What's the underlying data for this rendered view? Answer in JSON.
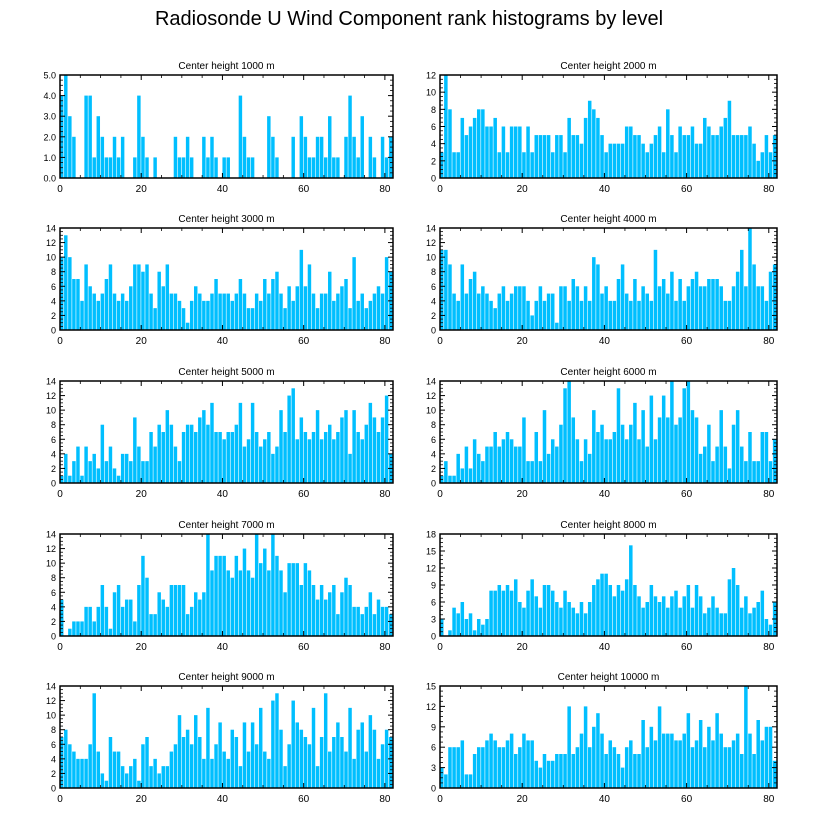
{
  "title": "Radiosonde U Wind Component rank histograms by level",
  "colors": {
    "bar": "#00bfff",
    "axis": "#000000"
  },
  "chart_data": [
    {
      "type": "bar",
      "title": "Center height 1000 m",
      "xlim": [
        0,
        82
      ],
      "xticks": [
        0,
        20,
        40,
        60,
        80
      ],
      "ylim": [
        0,
        5
      ],
      "yticks": [
        0,
        1,
        2,
        3,
        4,
        5
      ],
      "ytick_labels": [
        "0.0",
        "1.0",
        "2.0",
        "3.0",
        "4.0",
        "5.0"
      ],
      "values": [
        4,
        5,
        3,
        2,
        0,
        0,
        4,
        4,
        1,
        3,
        2,
        1,
        1,
        2,
        1,
        2,
        0,
        0,
        1,
        4,
        2,
        1,
        0,
        1,
        0,
        0,
        0,
        0,
        2,
        1,
        1,
        2,
        1,
        0,
        0,
        2,
        1,
        2,
        1,
        0,
        1,
        1,
        0,
        0,
        4,
        2,
        1,
        1,
        0,
        0,
        0,
        3,
        2,
        1,
        0,
        0,
        0,
        2,
        0,
        3,
        2,
        1,
        1,
        2,
        2,
        1,
        3,
        1,
        1,
        0,
        2,
        4,
        2,
        1,
        3,
        0,
        2,
        1,
        0,
        2,
        1,
        2
      ]
    },
    {
      "type": "bar",
      "title": "Center height 2000 m",
      "xlim": [
        0,
        82
      ],
      "xticks": [
        0,
        20,
        40,
        60,
        80
      ],
      "ylim": [
        0,
        12
      ],
      "yticks": [
        0,
        2,
        4,
        6,
        8,
        10,
        12
      ],
      "ytick_labels": [
        "0",
        "2",
        "4",
        "6",
        "8",
        "10",
        "12"
      ],
      "values": [
        3,
        12,
        8,
        3,
        3,
        7,
        5,
        6,
        7,
        8,
        8,
        6,
        6,
        7,
        3,
        6,
        3,
        6,
        6,
        6,
        3,
        6,
        3,
        5,
        5,
        5,
        5,
        3,
        5,
        5,
        3,
        7,
        5,
        5,
        4,
        7,
        9,
        8,
        7,
        5,
        3,
        4,
        4,
        4,
        4,
        6,
        6,
        5,
        5,
        4,
        3,
        4,
        5,
        6,
        3,
        8,
        5,
        3,
        6,
        5,
        5,
        6,
        4,
        4,
        7,
        6,
        5,
        5,
        6,
        7,
        9,
        5,
        5,
        5,
        5,
        6,
        4,
        2,
        3,
        5,
        3,
        5
      ]
    },
    {
      "type": "bar",
      "title": "Center height 3000 m",
      "xlim": [
        0,
        82
      ],
      "xticks": [
        0,
        20,
        40,
        60,
        80
      ],
      "ylim": [
        0,
        14
      ],
      "yticks": [
        0,
        2,
        4,
        6,
        8,
        10,
        12,
        14
      ],
      "ytick_labels": [
        "0",
        "2",
        "4",
        "6",
        "8",
        "10",
        "12",
        "14"
      ],
      "values": [
        10,
        13,
        10,
        7,
        7,
        4,
        9,
        6,
        5,
        4,
        5,
        7,
        9,
        5,
        4,
        5,
        4,
        6,
        9,
        9,
        8,
        9,
        5,
        3,
        8,
        6,
        9,
        5,
        5,
        4,
        3,
        1,
        4,
        6,
        5,
        4,
        4,
        5,
        7,
        5,
        5,
        5,
        4,
        5,
        7,
        5,
        3,
        3,
        5,
        4,
        7,
        5,
        7,
        8,
        5,
        3,
        6,
        4,
        6,
        11,
        6,
        9,
        5,
        3,
        5,
        5,
        8,
        4,
        5,
        6,
        7,
        3,
        10,
        4,
        5,
        3,
        4,
        5,
        6,
        5,
        10,
        8
      ]
    },
    {
      "type": "bar",
      "title": "Center height 4000 m",
      "xlim": [
        0,
        82
      ],
      "xticks": [
        0,
        20,
        40,
        60,
        80
      ],
      "ylim": [
        0,
        14
      ],
      "yticks": [
        0,
        2,
        4,
        6,
        8,
        10,
        12,
        14
      ],
      "ytick_labels": [
        "0",
        "2",
        "4",
        "6",
        "8",
        "10",
        "12",
        "14"
      ],
      "values": [
        11,
        11,
        9,
        5,
        4,
        9,
        5,
        7,
        8,
        5,
        6,
        5,
        4,
        3,
        5,
        6,
        4,
        5,
        6,
        6,
        6,
        4,
        2,
        4,
        6,
        4,
        5,
        5,
        1,
        6,
        6,
        4,
        7,
        6,
        4,
        6,
        4,
        10,
        9,
        5,
        6,
        4,
        4,
        7,
        9,
        5,
        4,
        7,
        4,
        6,
        5,
        4,
        11,
        6,
        7,
        5,
        8,
        4,
        7,
        4,
        6,
        7,
        8,
        6,
        6,
        7,
        7,
        7,
        6,
        4,
        4,
        6,
        8,
        11,
        6,
        14,
        9,
        6,
        6,
        4,
        8,
        9
      ]
    },
    {
      "type": "bar",
      "title": "Center height 5000 m",
      "xlim": [
        0,
        82
      ],
      "xticks": [
        0,
        20,
        40,
        60,
        80
      ],
      "ylim": [
        0,
        14
      ],
      "yticks": [
        0,
        2,
        4,
        6,
        8,
        10,
        12,
        14
      ],
      "ytick_labels": [
        "0",
        "2",
        "4",
        "6",
        "8",
        "10",
        "12",
        "14"
      ],
      "values": [
        1,
        4,
        1,
        3,
        5,
        1,
        5,
        3,
        4,
        2,
        8,
        3,
        5,
        2,
        1,
        4,
        4,
        3,
        9,
        5,
        3,
        3,
        7,
        5,
        8,
        7,
        10,
        8,
        5,
        3,
        7,
        8,
        8,
        7,
        9,
        10,
        8,
        11,
        7,
        7,
        6,
        7,
        7,
        8,
        11,
        5,
        6,
        11,
        7,
        5,
        6,
        7,
        4,
        5,
        10,
        7,
        12,
        13,
        6,
        9,
        7,
        6,
        7,
        10,
        6,
        7,
        8,
        6,
        7,
        9,
        10,
        4,
        10,
        7,
        6,
        8,
        11,
        9,
        7,
        9,
        12,
        4
      ]
    },
    {
      "type": "bar",
      "title": "Center height 6000 m",
      "xlim": [
        0,
        82
      ],
      "xticks": [
        0,
        20,
        40,
        60,
        80
      ],
      "ylim": [
        0,
        14
      ],
      "yticks": [
        0,
        2,
        4,
        6,
        8,
        10,
        12,
        14
      ],
      "ytick_labels": [
        "0",
        "2",
        "4",
        "6",
        "8",
        "10",
        "12",
        "14"
      ],
      "values": [
        1,
        3,
        1,
        1,
        4,
        2,
        5,
        2,
        6,
        4,
        3,
        5,
        5,
        7,
        5,
        6,
        7,
        6,
        5,
        5,
        9,
        3,
        3,
        7,
        3,
        10,
        4,
        6,
        5,
        8,
        13,
        14,
        9,
        6,
        3,
        6,
        4,
        10,
        7,
        8,
        6,
        6,
        7,
        13,
        8,
        6,
        8,
        11,
        6,
        10,
        5,
        12,
        6,
        9,
        12,
        9,
        14,
        8,
        9,
        13,
        14,
        10,
        9,
        4,
        5,
        8,
        3,
        5,
        10,
        5,
        2,
        8,
        10,
        5,
        3,
        7,
        3,
        3,
        7,
        7,
        3,
        6
      ]
    },
    {
      "type": "bar",
      "title": "Center height 7000 m",
      "xlim": [
        0,
        82
      ],
      "xticks": [
        0,
        20,
        40,
        60,
        80
      ],
      "ylim": [
        0,
        14
      ],
      "yticks": [
        0,
        2,
        4,
        6,
        8,
        10,
        12,
        14
      ],
      "ytick_labels": [
        "0",
        "2",
        "4",
        "6",
        "8",
        "10",
        "12",
        "14"
      ],
      "values": [
        5,
        0,
        1,
        2,
        2,
        2,
        4,
        4,
        2,
        4,
        7,
        4,
        1,
        6,
        7,
        4,
        5,
        5,
        2,
        7,
        11,
        8,
        3,
        3,
        6,
        5,
        4,
        7,
        7,
        7,
        7,
        3,
        4,
        6,
        5,
        6,
        14,
        9,
        11,
        11,
        11,
        9,
        8,
        11,
        9,
        12,
        9,
        8,
        14,
        10,
        12,
        9,
        14,
        11,
        9,
        6,
        10,
        10,
        10,
        7,
        10,
        9,
        7,
        5,
        7,
        5,
        6,
        7,
        3,
        6,
        8,
        7,
        4,
        4,
        3,
        4,
        6,
        3,
        5,
        4,
        4,
        3
      ]
    },
    {
      "type": "bar",
      "title": "Center height 8000 m",
      "xlim": [
        0,
        82
      ],
      "xticks": [
        0,
        20,
        40,
        60,
        80
      ],
      "ylim": [
        0,
        18
      ],
      "yticks": [
        0,
        3,
        6,
        9,
        12,
        15,
        18
      ],
      "ytick_labels": [
        "0",
        "3",
        "6",
        "9",
        "12",
        "15",
        "18"
      ],
      "values": [
        3,
        0,
        1,
        5,
        4,
        6,
        3,
        4,
        1,
        3,
        2,
        3,
        8,
        8,
        9,
        8,
        9,
        8,
        10,
        6,
        5,
        8,
        10,
        7,
        5,
        9,
        9,
        8,
        6,
        5,
        8,
        6,
        5,
        4,
        6,
        4,
        6,
        9,
        10,
        11,
        11,
        9,
        7,
        9,
        8,
        10,
        16,
        9,
        7,
        5,
        6,
        9,
        7,
        6,
        7,
        5,
        7,
        8,
        5,
        7,
        9,
        5,
        9,
        7,
        4,
        5,
        7,
        5,
        4,
        4,
        10,
        12,
        9,
        5,
        7,
        4,
        5,
        6,
        8,
        3,
        2,
        6
      ]
    },
    {
      "type": "bar",
      "title": "Center height 9000 m",
      "xlim": [
        0,
        82
      ],
      "xticks": [
        0,
        20,
        40,
        60,
        80
      ],
      "ylim": [
        0,
        14
      ],
      "yticks": [
        0,
        2,
        4,
        6,
        8,
        10,
        12,
        14
      ],
      "ytick_labels": [
        "0",
        "2",
        "4",
        "6",
        "8",
        "10",
        "12",
        "14"
      ],
      "values": [
        7,
        8,
        6,
        5,
        4,
        4,
        4,
        6,
        13,
        5,
        2,
        1,
        7,
        5,
        5,
        3,
        2,
        3,
        4,
        1,
        6,
        7,
        3,
        4,
        2,
        3,
        3,
        5,
        6,
        10,
        7,
        8,
        6,
        10,
        7,
        4,
        11,
        4,
        6,
        9,
        5,
        4,
        8,
        7,
        3,
        9,
        5,
        9,
        6,
        11,
        5,
        4,
        12,
        13,
        8,
        3,
        6,
        12,
        9,
        8,
        7,
        6,
        11,
        3,
        7,
        13,
        5,
        7,
        9,
        7,
        5,
        11,
        4,
        8,
        9,
        5,
        10,
        8,
        4,
        6,
        8,
        7
      ]
    },
    {
      "type": "bar",
      "title": "Center height 10000 m",
      "xlim": [
        0,
        82
      ],
      "xticks": [
        0,
        20,
        40,
        60,
        80
      ],
      "ylim": [
        0,
        15
      ],
      "yticks": [
        0,
        3,
        6,
        9,
        12,
        15
      ],
      "ytick_labels": [
        "0",
        "3",
        "6",
        "9",
        "12",
        "15"
      ],
      "values": [
        3,
        2,
        6,
        6,
        6,
        7,
        2,
        2,
        5,
        6,
        6,
        7,
        8,
        7,
        6,
        6,
        7,
        8,
        5,
        6,
        8,
        7,
        7,
        4,
        3,
        5,
        4,
        4,
        5,
        5,
        5,
        12,
        5,
        6,
        8,
        12,
        6,
        9,
        11,
        8,
        5,
        7,
        6,
        5,
        3,
        6,
        7,
        5,
        5,
        10,
        6,
        9,
        7,
        12,
        8,
        8,
        8,
        7,
        7,
        8,
        11,
        6,
        7,
        10,
        6,
        9,
        7,
        11,
        8,
        6,
        6,
        7,
        8,
        5,
        15,
        8,
        5,
        10,
        7,
        9,
        9,
        4
      ]
    }
  ]
}
